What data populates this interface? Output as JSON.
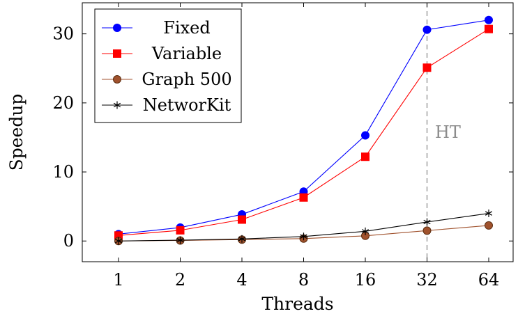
{
  "chart_data": {
    "type": "line",
    "title": "",
    "xlabel": "Threads",
    "ylabel": "Speedup",
    "categories": [
      "1",
      "2",
      "4",
      "8",
      "16",
      "32",
      "64"
    ],
    "ylim": [
      -3,
      34.5
    ],
    "yticks": [
      0,
      10,
      20,
      30
    ],
    "grid": false,
    "legend_position": "top-left",
    "annotation": {
      "text": "HT",
      "at_category": "32",
      "color": "#8c8c8c"
    },
    "series": [
      {
        "name": "Fixed",
        "color": "#0000ff",
        "marker": "circle",
        "values": [
          1.0,
          1.95,
          3.85,
          7.15,
          15.3,
          30.6,
          32.0
        ]
      },
      {
        "name": "Variable",
        "color": "#ff0000",
        "marker": "square",
        "values": [
          0.8,
          1.55,
          3.1,
          6.3,
          12.2,
          25.1,
          30.7
        ]
      },
      {
        "name": "Graph 500",
        "color": "#a0522d",
        "marker": "circle-filled-brown",
        "values": [
          0.0,
          0.08,
          0.2,
          0.35,
          0.75,
          1.5,
          2.25
        ]
      },
      {
        "name": "NetworKit",
        "color": "#000000",
        "marker": "star",
        "values": [
          0.0,
          0.12,
          0.3,
          0.65,
          1.4,
          2.75,
          4.0
        ]
      }
    ]
  }
}
